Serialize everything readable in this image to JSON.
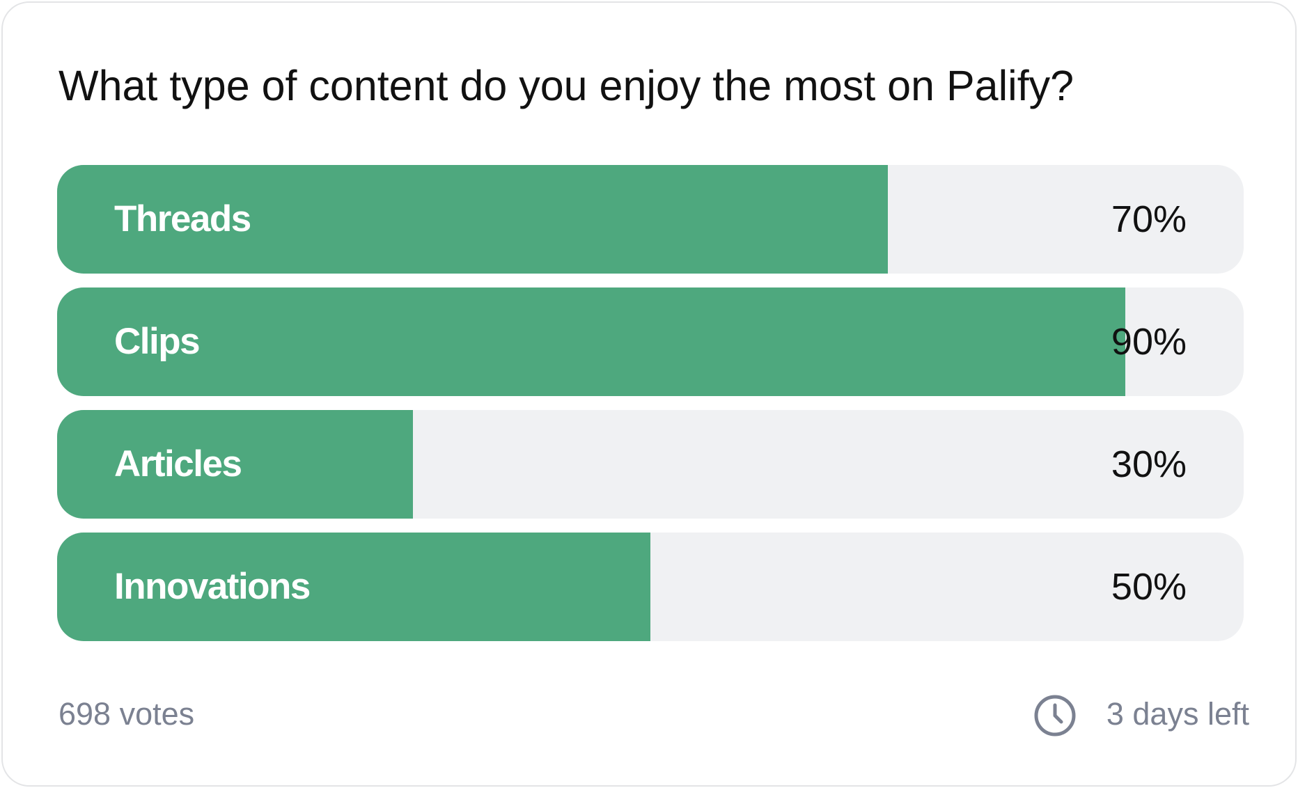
{
  "poll": {
    "question": "What type of content do you enjoy the most on Palify?",
    "bar_color": "#4ea87e",
    "track_color": "#f0f1f3",
    "options": [
      {
        "label": "Threads",
        "value": 70,
        "value_label": "70%"
      },
      {
        "label": "Clips",
        "value": 90,
        "value_label": "90%"
      },
      {
        "label": "Articles",
        "value": 30,
        "value_label": "30%"
      },
      {
        "label": "Innovations",
        "value": 50,
        "value_label": "50%"
      }
    ],
    "votes": "698 votes",
    "time_left": "3 days left"
  }
}
